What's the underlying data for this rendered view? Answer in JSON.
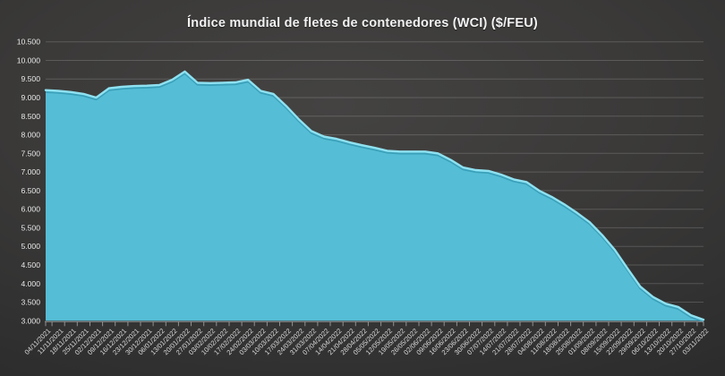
{
  "title": "Índice mundial de fletes de contenedores (WCI) ($/FEU)",
  "chart_data": {
    "type": "area",
    "title": "Índice mundial de fletes de contenedores (WCI) ($/FEU)",
    "xlabel": "",
    "ylabel": "",
    "ylim": [
      3000,
      10500
    ],
    "grid": true,
    "legend": "none",
    "x_label_rotation": -45,
    "categories": [
      "04/11/2021",
      "11/11/2021",
      "18/11/2021",
      "25/11/2021",
      "02/12/2021",
      "09/12/2021",
      "16/12/2021",
      "23/12/2021",
      "30/12/2021",
      "06/01/2022",
      "13/01/2022",
      "20/01/2022",
      "27/01/2022",
      "03/02/2022",
      "10/02/2022",
      "17/02/2022",
      "24/02/2022",
      "03/03/2022",
      "10/03/2022",
      "17/03/2022",
      "24/03/2022",
      "31/03/2022",
      "07/04/2022",
      "14/04/2022",
      "21/04/2022",
      "28/04/2022",
      "05/05/2022",
      "12/05/2022",
      "19/05/2022",
      "26/05/2022",
      "02/06/2022",
      "09/06/2022",
      "16/06/2022",
      "23/06/2022",
      "30/06/2022",
      "07/07/2022",
      "14/07/2022",
      "21/07/2022",
      "28/07/2022",
      "04/08/2022",
      "11/08/2022",
      "18/08/2022",
      "25/08/2022",
      "01/09/2022",
      "08/09/2022",
      "15/09/2022",
      "22/09/2022",
      "29/09/2022",
      "06/10/2022",
      "13/10/2022",
      "20/10/2022",
      "27/10/2022",
      "03/11/2022"
    ],
    "values": [
      9200,
      9180,
      9150,
      9100,
      9000,
      9250,
      9290,
      9310,
      9320,
      9340,
      9480,
      9700,
      9400,
      9390,
      9400,
      9410,
      9480,
      9180,
      9100,
      8780,
      8420,
      8100,
      7950,
      7890,
      7800,
      7720,
      7650,
      7570,
      7550,
      7550,
      7550,
      7500,
      7330,
      7120,
      7050,
      7030,
      6930,
      6800,
      6730,
      6500,
      6330,
      6130,
      5900,
      5650,
      5300,
      4900,
      4400,
      3920,
      3640,
      3460,
      3370,
      3150,
      3030
    ],
    "yticks": [
      {
        "value": 10500,
        "label": "10.500"
      },
      {
        "value": 10000,
        "label": "10.000"
      },
      {
        "value": 9500,
        "label": "9.500"
      },
      {
        "value": 9000,
        "label": "9.000"
      },
      {
        "value": 8500,
        "label": "8.500"
      },
      {
        "value": 8000,
        "label": "8.000"
      },
      {
        "value": 7500,
        "label": "7.500"
      },
      {
        "value": 7000,
        "label": "7.000"
      },
      {
        "value": 6500,
        "label": "6.500"
      },
      {
        "value": 6000,
        "label": "6.000"
      },
      {
        "value": 5500,
        "label": "5.500"
      },
      {
        "value": 5000,
        "label": "5.000"
      },
      {
        "value": 4500,
        "label": "4.500"
      },
      {
        "value": 4000,
        "label": "4.000"
      },
      {
        "value": 3500,
        "label": "3.500"
      },
      {
        "value": 3000,
        "label": "3.000"
      }
    ],
    "colors": {
      "fill": "#55bdd5",
      "edge": "#8fe1f0",
      "edge_shadow": "#3aa0ba",
      "grid": "rgba(255,255,255,0.17)",
      "axis": "#919191",
      "background_center": "#444342",
      "background_corner": "#252526"
    }
  }
}
